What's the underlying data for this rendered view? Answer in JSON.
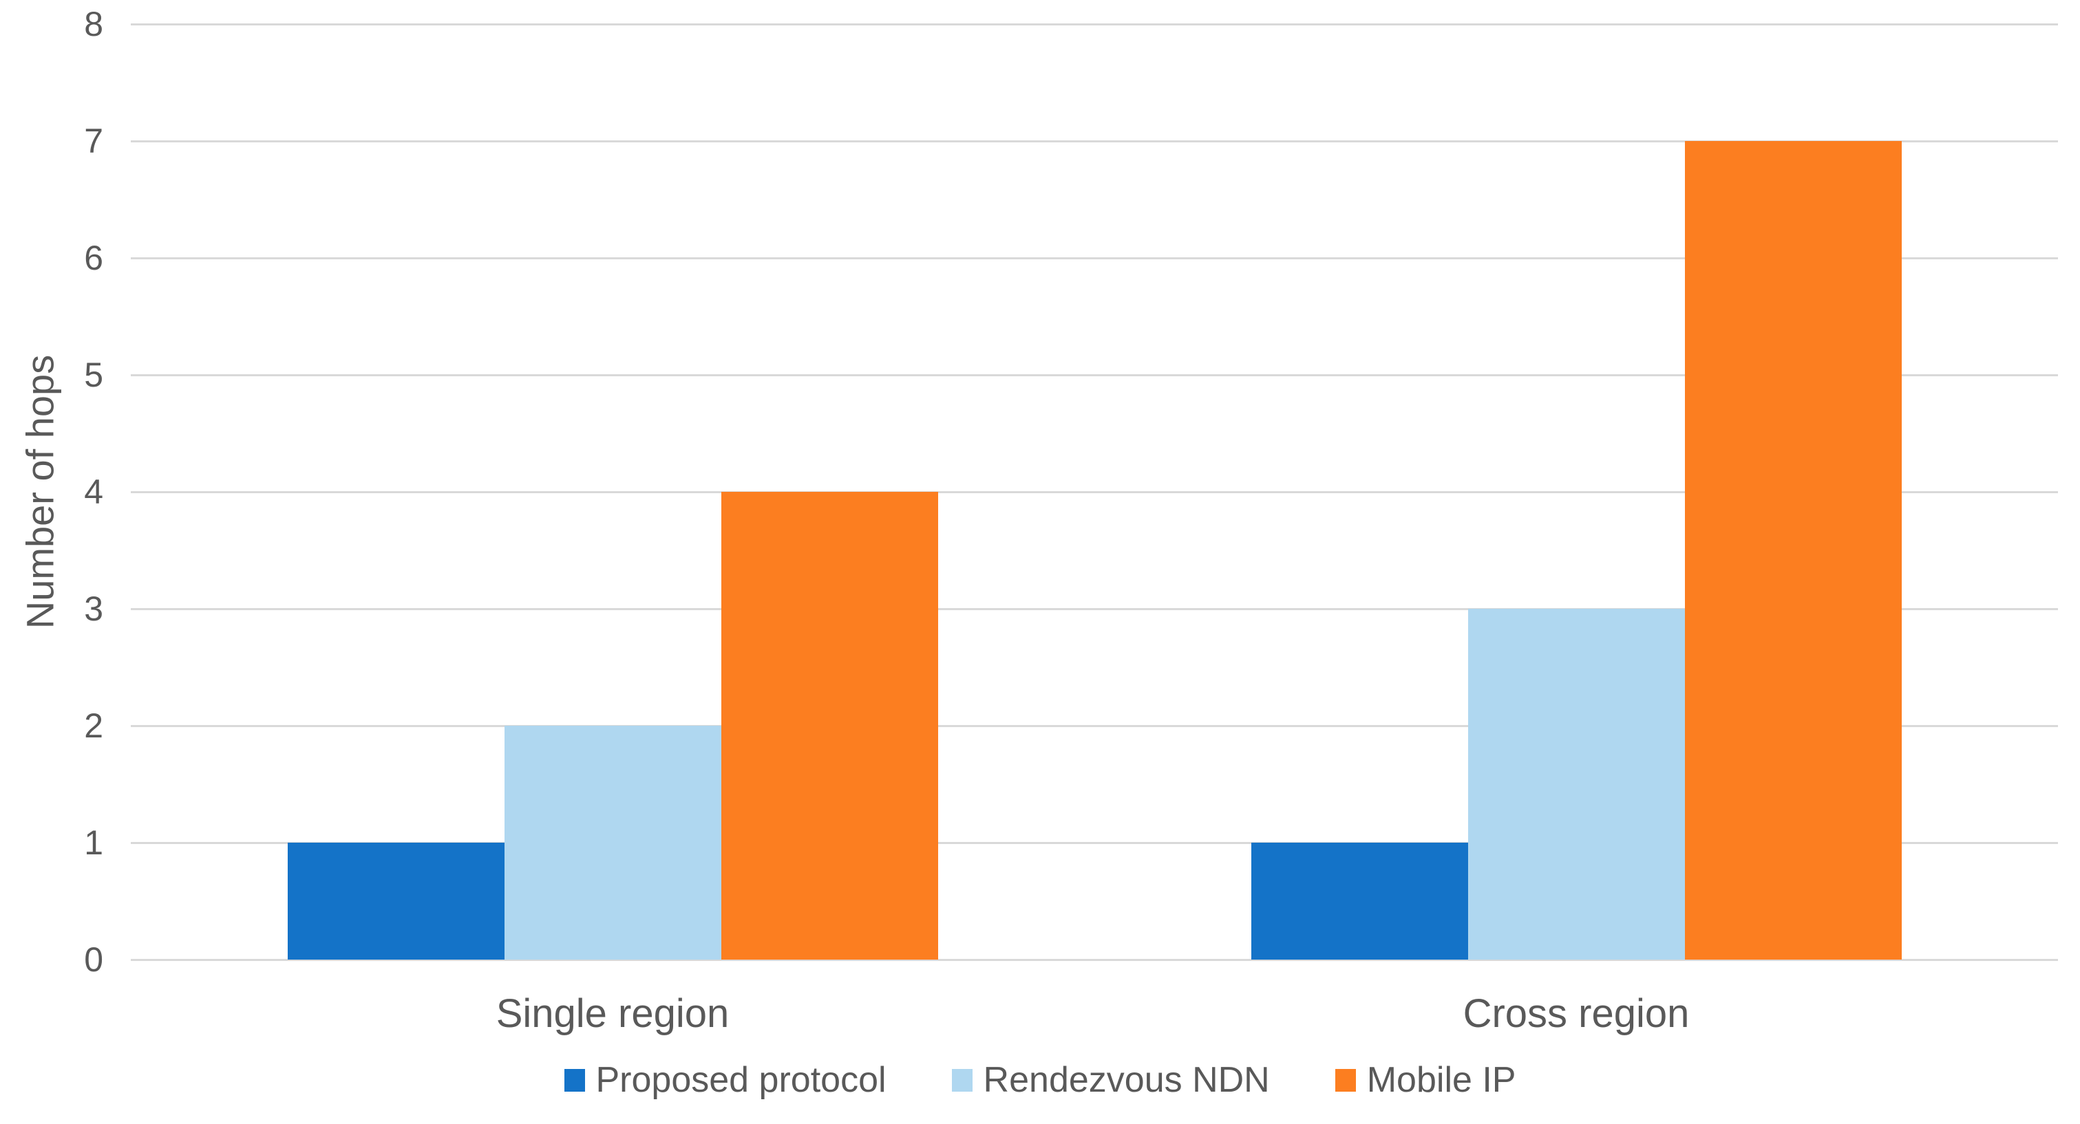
{
  "chart_data": {
    "type": "bar",
    "title": "",
    "categories": [
      "Single region",
      "Cross region"
    ],
    "series": [
      {
        "name": "Proposed protocol",
        "color": "#1473C8",
        "values": [
          1,
          1
        ]
      },
      {
        "name": "Rendezvous NDN",
        "color": "#AFD7F0",
        "values": [
          2,
          3
        ]
      },
      {
        "name": "Mobile IP",
        "color": "#FC7E20",
        "values": [
          4,
          7
        ]
      }
    ],
    "xlabel": "",
    "ylabel": "Number of hops",
    "ylim": [
      0,
      8
    ],
    "yticks": [
      0,
      1,
      2,
      3,
      4,
      5,
      6,
      7,
      8
    ],
    "grid": true,
    "legend_position": "bottom"
  },
  "colors": {
    "gridline": "#D9D9D9",
    "axis_text": "#595959",
    "background": "#FFFFFF"
  }
}
